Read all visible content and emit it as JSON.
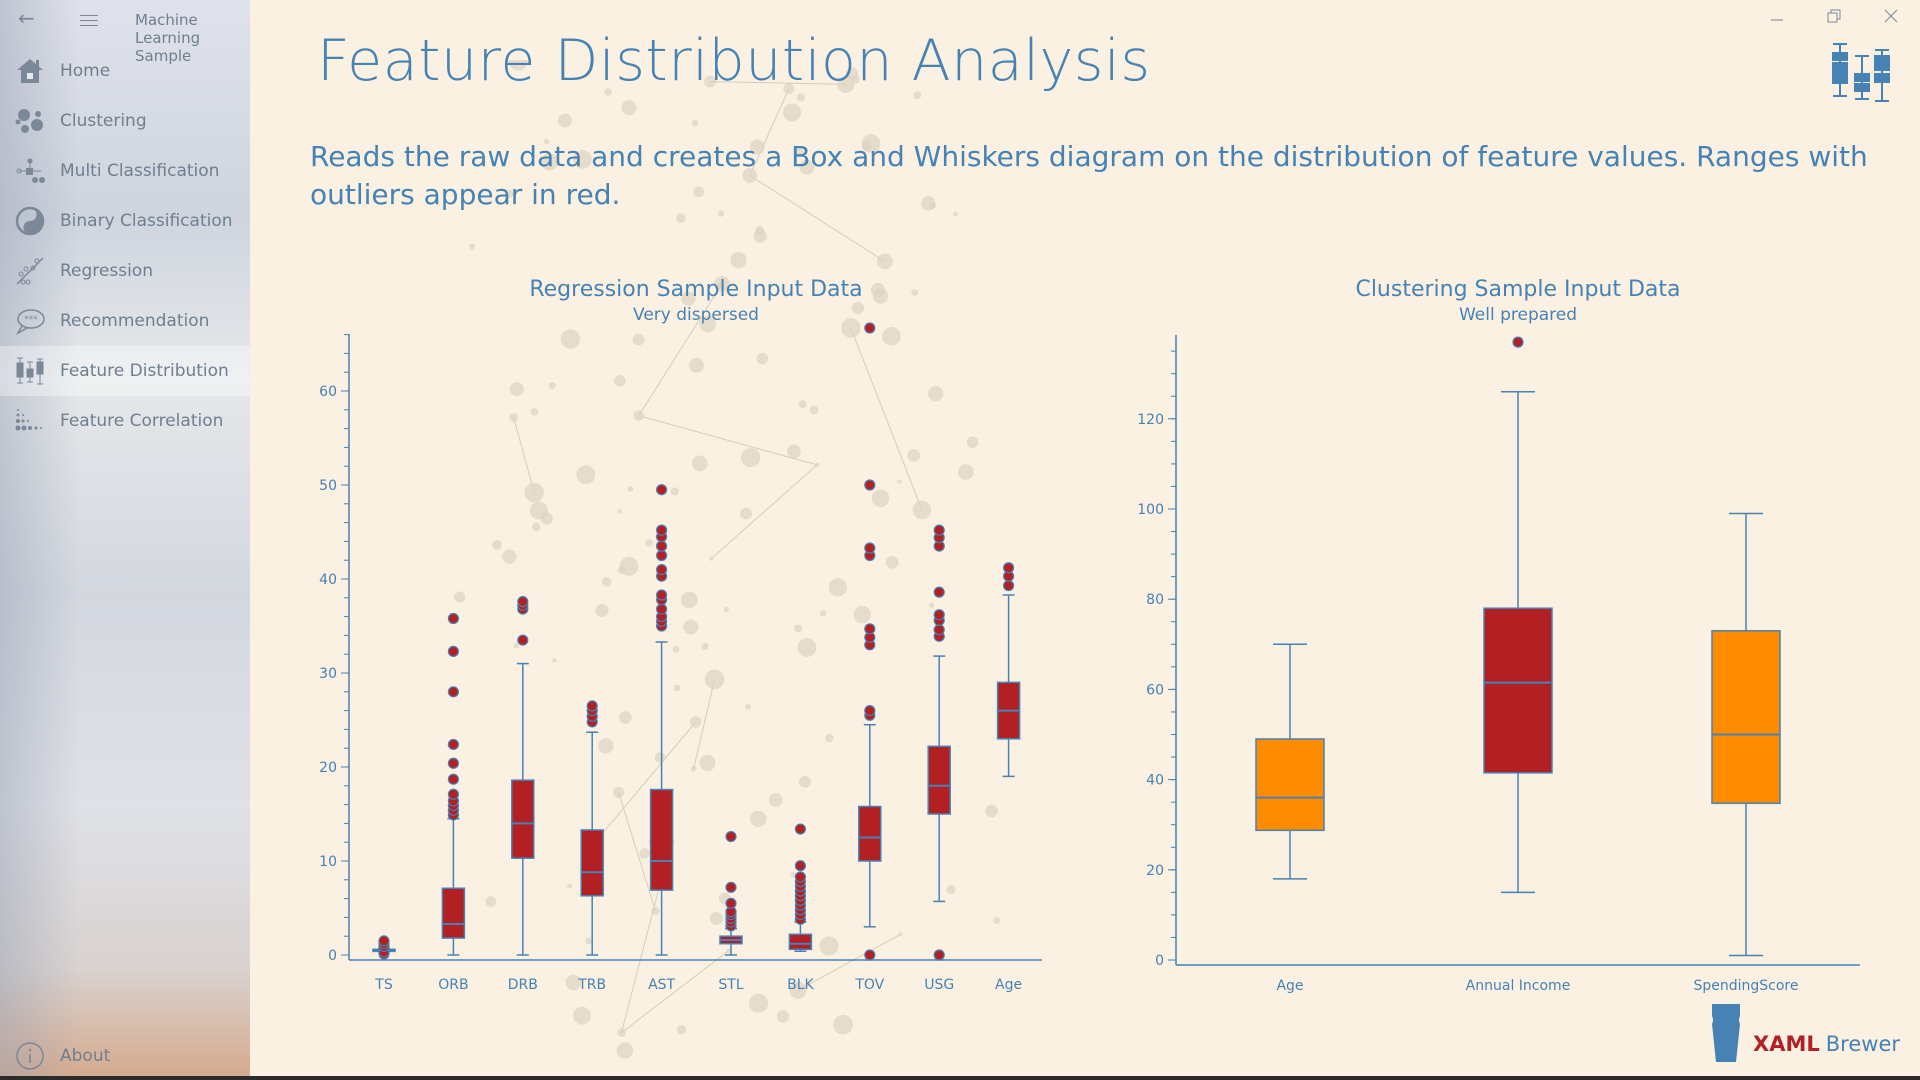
{
  "window": {
    "app_title": "Machine Learning Sample",
    "back_icon": "arrow-left-icon",
    "menu_icon": "hamburger-icon",
    "minimize_icon": "minimize-icon",
    "restore_icon": "restore-icon",
    "close_icon": "close-icon"
  },
  "sidebar": {
    "items": [
      {
        "label": "Home",
        "icon": "home-icon"
      },
      {
        "label": "Clustering",
        "icon": "clustering-icon"
      },
      {
        "label": "Multi Classification",
        "icon": "multi-classification-icon"
      },
      {
        "label": "Binary Classification",
        "icon": "yin-yang-icon"
      },
      {
        "label": "Regression",
        "icon": "regression-icon"
      },
      {
        "label": "Recommendation",
        "icon": "speech-bubble-icon"
      },
      {
        "label": "Feature Distribution",
        "icon": "box-plot-icon",
        "active": true
      },
      {
        "label": "Feature Correlation",
        "icon": "dot-matrix-icon"
      }
    ],
    "about": {
      "label": "About",
      "icon": "info-icon"
    }
  },
  "page": {
    "title": "Feature Distribution Analysis",
    "description": "Reads the raw data and creates a Box and Whiskers diagram on the distribution of feature values. Ranges with outliers appear in red.",
    "header_icon": "box-plot-icon",
    "brand_strong": "XAML",
    "brand_light": "Brewer",
    "brand_icon": "beer-glass-icon"
  },
  "colors": {
    "accent": "#4682B4",
    "outlier_fill": "#B22024",
    "normal_fill": "#FF8C00",
    "background": "#FBF1E2"
  },
  "chart_data": [
    {
      "type": "boxplot",
      "title": "Regression Sample Input Data",
      "subtitle": "Very dispersed",
      "xlabel": "",
      "ylabel": "",
      "ylim": [
        0,
        68
      ],
      "yticks": [
        0,
        10,
        20,
        30,
        40,
        50,
        60
      ],
      "grid": false,
      "categories": [
        "TS",
        "ORB",
        "DRB",
        "TRB",
        "AST",
        "STL",
        "BLK",
        "TOV",
        "USG",
        "Age"
      ],
      "series": [
        {
          "name": "TS",
          "min": 0.5,
          "q1": 0.5,
          "median": 0.55,
          "q3": 0.6,
          "max": 0.7,
          "outliers": [
            0.1,
            0.3,
            0.9,
            1.2,
            1.5
          ],
          "has_outliers": true
        },
        {
          "name": "ORB",
          "min": 0,
          "q1": 1.8,
          "median": 3.3,
          "q3": 7.1,
          "max": 14.5,
          "outliers": [
            14.9,
            15.4,
            15.9,
            16.4,
            17.1,
            18.7,
            20.4,
            22.4,
            28.0,
            32.3,
            35.8
          ],
          "has_outliers": true
        },
        {
          "name": "DRB",
          "min": 0,
          "q1": 10.3,
          "median": 14.0,
          "q3": 18.6,
          "max": 31.0,
          "outliers": [
            33.5,
            36.8,
            37.2,
            37.6
          ],
          "has_outliers": true
        },
        {
          "name": "TRB",
          "min": 0,
          "q1": 6.3,
          "median": 8.8,
          "q3": 13.3,
          "max": 23.7,
          "outliers": [
            24.8,
            25.4,
            26.0,
            26.5
          ],
          "has_outliers": true
        },
        {
          "name": "AST",
          "min": 0,
          "q1": 6.9,
          "median": 10.0,
          "q3": 17.6,
          "max": 33.3,
          "outliers": [
            35.0,
            35.5,
            36.0,
            36.8,
            37.8,
            38.3,
            40.3,
            41.0,
            42.5,
            43.5,
            44.5,
            45.2,
            49.5
          ],
          "has_outliers": true
        },
        {
          "name": "STL",
          "min": 0,
          "q1": 1.2,
          "median": 1.6,
          "q3": 2.0,
          "max": 2.8,
          "outliers": [
            3.1,
            3.5,
            3.9,
            4.3,
            4.6,
            5.5,
            7.2,
            12.6
          ],
          "has_outliers": true
        },
        {
          "name": "BLK",
          "min": 0.4,
          "q1": 0.6,
          "median": 1.2,
          "q3": 2.2,
          "max": 3.5,
          "outliers": [
            3.8,
            4.3,
            4.8,
            5.3,
            5.8,
            6.3,
            6.8,
            7.3,
            7.8,
            8.3,
            9.5,
            13.4
          ],
          "has_outliers": true
        },
        {
          "name": "TOV",
          "min": 3.0,
          "q1": 10.0,
          "median": 12.5,
          "q3": 15.8,
          "max": 24.5,
          "outliers": [
            0,
            25.5,
            26.0,
            33.0,
            33.8,
            34.7,
            42.5,
            43.3,
            50.0,
            66.7
          ],
          "has_outliers": true
        },
        {
          "name": "USG",
          "min": 5.7,
          "q1": 15.0,
          "median": 18.0,
          "q3": 22.2,
          "max": 31.8,
          "outliers": [
            0,
            33.9,
            34.6,
            35.6,
            36.2,
            38.6,
            43.5,
            44.4,
            45.2
          ],
          "has_outliers": true
        },
        {
          "name": "Age",
          "min": 19.0,
          "q1": 23.0,
          "median": 26.0,
          "q3": 29.0,
          "max": 38.3,
          "outliers": [
            39.3,
            40.3,
            41.2
          ],
          "has_outliers": true
        }
      ]
    },
    {
      "type": "boxplot",
      "title": "Clustering Sample Input Data",
      "subtitle": "Well prepared",
      "xlabel": "",
      "ylabel": "",
      "ylim": [
        0,
        140
      ],
      "yticks": [
        0,
        20,
        40,
        60,
        80,
        100,
        120
      ],
      "grid": false,
      "categories": [
        "Age",
        "Annual Income",
        "SpendingScore"
      ],
      "series": [
        {
          "name": "Age",
          "min": 18,
          "q1": 28.75,
          "median": 36,
          "q3": 49,
          "max": 70,
          "outliers": [],
          "has_outliers": false
        },
        {
          "name": "Annual Income",
          "min": 15,
          "q1": 41.5,
          "median": 61.5,
          "q3": 78,
          "max": 126,
          "outliers": [
            137
          ],
          "has_outliers": true
        },
        {
          "name": "SpendingScore",
          "min": 1,
          "q1": 34.75,
          "median": 50,
          "q3": 73,
          "max": 99,
          "outliers": [],
          "has_outliers": false
        }
      ]
    }
  ]
}
